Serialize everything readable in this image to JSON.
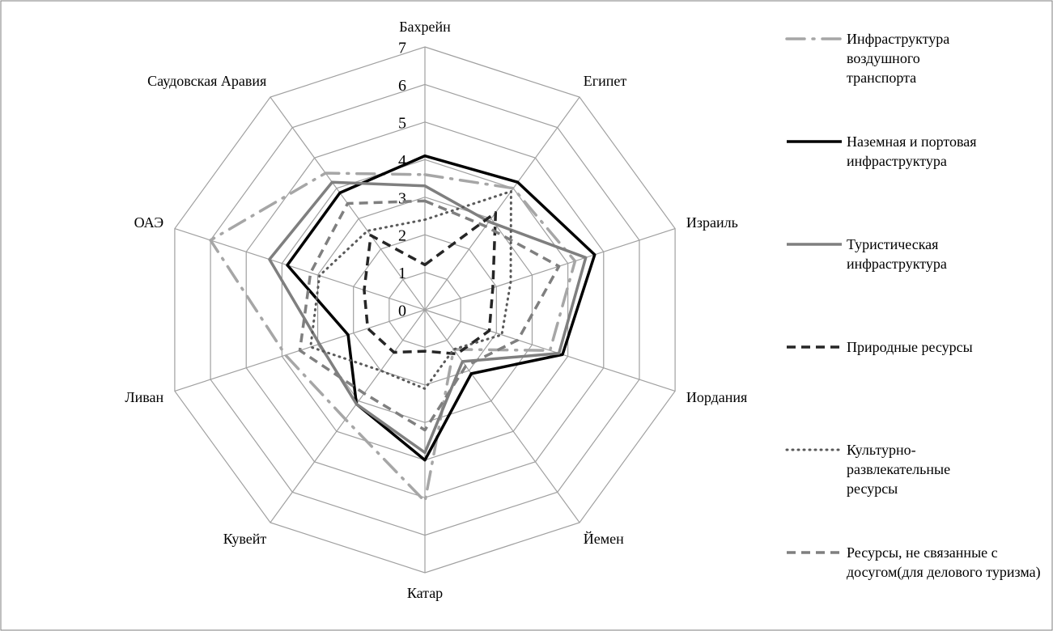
{
  "chart_data": {
    "type": "radar",
    "categories": [
      "Бахрейн",
      "Египет",
      "Израиль",
      "Иордания",
      "Йемен",
      "Катар",
      "Кувейт",
      "Ливан",
      "ОАЭ",
      "Саудовская Аравия"
    ],
    "ylim": [
      0,
      7
    ],
    "yticks": [
      0,
      1,
      2,
      3,
      4,
      5,
      6,
      7
    ],
    "grid": true,
    "legend": "right",
    "series": [
      {
        "name": "Инфраструктура воздушного транспорта",
        "color": "#a6a6a6",
        "style": "dashdot",
        "values": [
          3.6,
          4.0,
          4.2,
          3.5,
          1.3,
          5.1,
          3.6,
          3.9,
          6.0,
          4.5
        ]
      },
      {
        "name": "Наземная и портовая инфраструктура",
        "color": "#000000",
        "style": "solid",
        "values": [
          4.1,
          4.2,
          4.75,
          3.85,
          2.1,
          4.0,
          3.1,
          2.15,
          3.85,
          3.85
        ]
      },
      {
        "name": "Туристическая инфраструктура",
        "color": "#7f7f7f",
        "style": "solid",
        "values": [
          3.3,
          2.9,
          4.5,
          3.75,
          1.7,
          3.8,
          3.1,
          2.95,
          4.35,
          4.2
        ]
      },
      {
        "name": "Природные ресурсы",
        "color": "#262626",
        "style": "dashed",
        "values": [
          1.2,
          3.2,
          1.9,
          1.8,
          1.45,
          1.1,
          1.4,
          1.6,
          1.7,
          2.45
        ]
      },
      {
        "name": "Культурно-развлекательные ресурсы",
        "color": "#595959",
        "style": "dotted",
        "values": [
          2.4,
          3.9,
          2.4,
          2.15,
          1.3,
          2.1,
          2.0,
          3.2,
          2.95,
          2.6
        ]
      },
      {
        "name": "Ресурсы, не связанные с досугом(для делового туризма)",
        "color": "#7f7f7f",
        "style": "dashed",
        "values": [
          2.9,
          2.75,
          3.75,
          2.6,
          1.85,
          3.2,
          2.75,
          3.5,
          3.2,
          3.5
        ]
      }
    ]
  }
}
